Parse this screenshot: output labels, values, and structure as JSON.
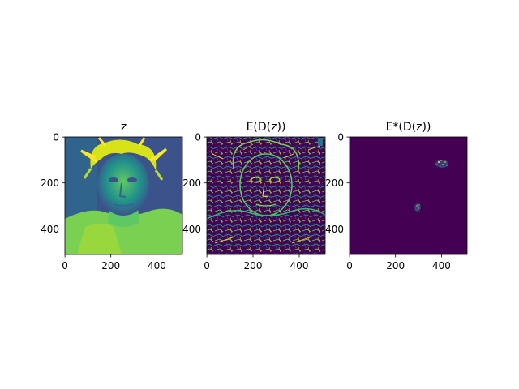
{
  "panels": [
    {
      "title": "z",
      "x_ticks": [
        "0",
        "200",
        "400"
      ],
      "y_ticks": [
        "0",
        "200",
        "400"
      ]
    },
    {
      "title": "E(D(z))",
      "x_ticks": [
        "0",
        "200",
        "400"
      ],
      "y_ticks": [
        "0",
        "200",
        "400"
      ]
    },
    {
      "title": "E*(D(z))",
      "x_ticks": [
        "0",
        "200",
        "400"
      ],
      "y_ticks": [
        "0",
        "200",
        "400"
      ]
    }
  ],
  "axis_range": [
    0,
    512
  ],
  "tick_values": [
    0,
    200,
    400
  ],
  "colormap": "viridis",
  "colors": {
    "viridis_dark": "#440154",
    "viridis_blue": "#3b528b",
    "viridis_teal": "#21918c",
    "viridis_green": "#5ec962",
    "viridis_yellow": "#fde725"
  }
}
